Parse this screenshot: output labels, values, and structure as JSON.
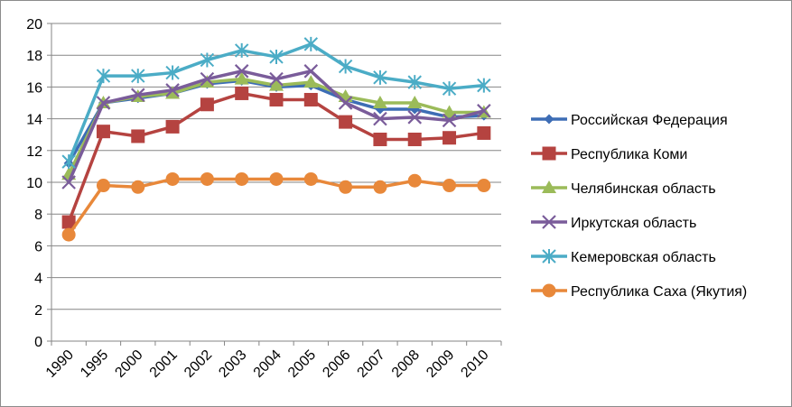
{
  "chart_data": {
    "type": "line",
    "title": "",
    "xlabel": "",
    "ylabel": "",
    "categories": [
      "1990",
      "1995",
      "2000",
      "2001",
      "2002",
      "2003",
      "2004",
      "2005",
      "2006",
      "2007",
      "2008",
      "2009",
      "2010"
    ],
    "ylim": [
      0,
      20
    ],
    "yticks": [
      0,
      2,
      4,
      6,
      8,
      10,
      12,
      14,
      16,
      18,
      20
    ],
    "grid": true,
    "legend_position": "right",
    "series": [
      {
        "name": "Российская Федерация",
        "color": "#3d6db5",
        "marker": "diamond",
        "values": [
          11.2,
          15.0,
          15.3,
          15.6,
          16.2,
          16.4,
          16.0,
          16.1,
          15.2,
          14.6,
          14.6,
          14.1,
          14.2
        ]
      },
      {
        "name": "Республика Коми",
        "color": "#b54340",
        "marker": "square",
        "values": [
          7.5,
          13.2,
          12.9,
          13.5,
          14.9,
          15.6,
          15.2,
          15.2,
          13.8,
          12.7,
          12.7,
          12.8,
          13.1
        ]
      },
      {
        "name": "Челябинская область",
        "color": "#9bbb59",
        "marker": "triangle",
        "values": [
          10.5,
          15.0,
          15.4,
          15.6,
          16.3,
          16.5,
          16.1,
          16.3,
          15.4,
          15.0,
          15.0,
          14.4,
          14.4
        ]
      },
      {
        "name": "Иркутская область",
        "color": "#7a5c9a",
        "marker": "x",
        "values": [
          10.0,
          15.0,
          15.5,
          15.8,
          16.5,
          17.0,
          16.5,
          17.0,
          15.0,
          14.0,
          14.1,
          13.9,
          14.5
        ]
      },
      {
        "name": "Кемеровская область",
        "color": "#4bacc6",
        "marker": "asterisk",
        "values": [
          11.3,
          16.7,
          16.7,
          16.9,
          17.7,
          18.3,
          17.9,
          18.7,
          17.3,
          16.6,
          16.3,
          15.9,
          16.1
        ]
      },
      {
        "name": "Республика Саха (Якутия)",
        "color": "#e8883a",
        "marker": "circle",
        "values": [
          6.7,
          9.8,
          9.7,
          10.2,
          10.2,
          10.2,
          10.2,
          10.2,
          9.7,
          9.7,
          10.1,
          9.8,
          9.8
        ]
      }
    ]
  }
}
